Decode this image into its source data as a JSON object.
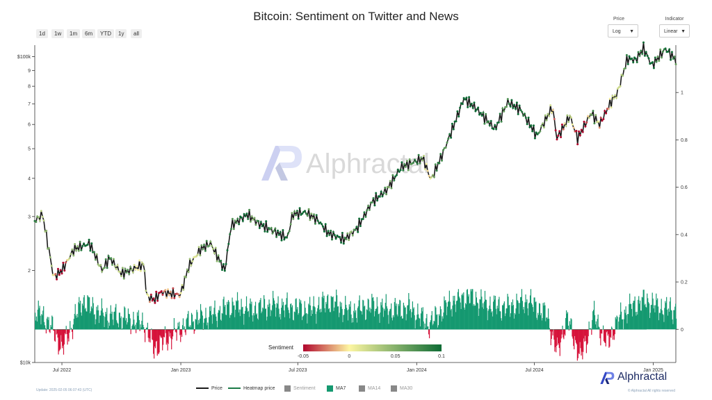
{
  "title": "Bitcoin: Sentiment on Twitter and News",
  "range_buttons": [
    "1d",
    "1w",
    "1m",
    "6m",
    "YTD",
    "1y",
    "all"
  ],
  "controls": {
    "price": {
      "label": "Price",
      "value": "Log"
    },
    "indicator": {
      "label": "Indicator",
      "value": "Linear"
    }
  },
  "watermark": "Alphractal",
  "brand": "Alphractal",
  "footer": {
    "update": "Update: 2025-02-05 06:07:43 (UTC)",
    "rights": "© Alphractal All rights reserved"
  },
  "legend": {
    "price": "Price",
    "heatmap_price": "Heatmap price",
    "sentiment": "Sentiment",
    "ma7": "MA7",
    "ma14": "MA14",
    "ma30": "MA30"
  },
  "colorbar": {
    "label": "Sentiment",
    "ticks": [
      "-0.05",
      "0",
      "0.05",
      "0.1"
    ],
    "min": -0.05,
    "max": 0.1
  },
  "colors": {
    "ma7_fill": "#159970",
    "negative_fill": "#d6133a",
    "price_line": "#1a1a1a",
    "heat_low": "#b1062d",
    "heat_mid": "#fdf6a2",
    "heat_high": "#0d6b34"
  },
  "chart_data": {
    "type": "line",
    "x_axis": {
      "type": "date",
      "range": [
        "2022-05-20",
        "2025-02-05"
      ],
      "tick_labels": [
        "Jul 2022",
        "Jan 2023",
        "Jul 2023",
        "Jan 2024",
        "Jul 2024",
        "Jan 2025"
      ]
    },
    "y_axis_left": {
      "scale": "log",
      "range": [
        10000,
        109000
      ],
      "tick_labels": [
        "$10k",
        "2",
        "3",
        "4",
        "5",
        "6",
        "7",
        "8",
        "9",
        "$100k"
      ]
    },
    "y_axis_right": {
      "range": [
        -0.14,
        1.2
      ],
      "tick_labels": [
        "0",
        "0.2",
        "0.4",
        "0.6",
        "0.8",
        "1"
      ]
    },
    "series": [
      {
        "name": "Price",
        "x": [
          "2022-05-20",
          "2022-06-01",
          "2022-06-13",
          "2022-06-18",
          "2022-07-01",
          "2022-07-20",
          "2022-08-13",
          "2022-09-01",
          "2022-09-13",
          "2022-10-01",
          "2022-10-26",
          "2022-11-05",
          "2022-11-09",
          "2022-11-21",
          "2022-12-01",
          "2022-12-31",
          "2023-01-14",
          "2023-02-01",
          "2023-02-16",
          "2023-03-10",
          "2023-03-20",
          "2023-04-14",
          "2023-05-01",
          "2023-06-15",
          "2023-06-23",
          "2023-07-13",
          "2023-08-01",
          "2023-08-17",
          "2023-09-11",
          "2023-10-01",
          "2023-10-24",
          "2023-11-15",
          "2023-12-08",
          "2024-01-11",
          "2024-01-23",
          "2024-02-10",
          "2024-02-28",
          "2024-03-14",
          "2024-04-01",
          "2024-05-01",
          "2024-05-21",
          "2024-06-10",
          "2024-07-05",
          "2024-07-29",
          "2024-08-05",
          "2024-08-25",
          "2024-09-06",
          "2024-09-27",
          "2024-10-10",
          "2024-10-29",
          "2024-11-06",
          "2024-11-22",
          "2024-12-05",
          "2024-12-17",
          "2024-12-30",
          "2025-01-20",
          "2025-02-05"
        ],
        "values": [
          29000,
          30500,
          22000,
          19000,
          20000,
          23500,
          24500,
          20000,
          22000,
          19500,
          20500,
          21000,
          16500,
          16000,
          17000,
          16600,
          20800,
          23500,
          24500,
          20000,
          28000,
          30500,
          28500,
          25500,
          30500,
          31000,
          29200,
          26500,
          25200,
          27500,
          33500,
          36500,
          43500,
          46500,
          39500,
          48000,
          60000,
          73000,
          68000,
          58000,
          71000,
          67000,
          55000,
          68500,
          54000,
          64000,
          54000,
          65500,
          60000,
          72000,
          75500,
          98500,
          97500,
          106500,
          93500,
          106000,
          97500
        ]
      },
      {
        "name": "MA7",
        "x": [
          "2022-05-20",
          "2022-06-10",
          "2022-07-01",
          "2022-08-01",
          "2022-09-01",
          "2022-10-01",
          "2022-11-05",
          "2022-11-20",
          "2022-12-20",
          "2023-01-20",
          "2023-02-20",
          "2023-03-20",
          "2023-04-20",
          "2023-05-20",
          "2023-06-20",
          "2023-07-20",
          "2023-08-20",
          "2023-09-20",
          "2023-10-20",
          "2023-11-20",
          "2023-12-20",
          "2024-01-20",
          "2024-02-20",
          "2024-03-20",
          "2024-04-20",
          "2024-05-20",
          "2024-06-20",
          "2024-07-20",
          "2024-08-05",
          "2024-08-20",
          "2024-09-10",
          "2024-10-01",
          "2024-10-20",
          "2024-11-10",
          "2024-12-01",
          "2024-12-20",
          "2025-01-10",
          "2025-02-05"
        ],
        "values": [
          0.08,
          0.03,
          -0.08,
          0.12,
          0.06,
          0.05,
          0.02,
          -0.08,
          -0.02,
          0.04,
          0.06,
          0.1,
          0.08,
          0.1,
          0.09,
          0.08,
          0.12,
          0.07,
          0.1,
          0.08,
          0.09,
          0.02,
          0.11,
          0.14,
          0.1,
          0.09,
          0.12,
          0.06,
          -0.1,
          0.05,
          -0.12,
          0.06,
          -0.06,
          0.05,
          0.1,
          0.12,
          0.09,
          0.08
        ]
      }
    ]
  }
}
